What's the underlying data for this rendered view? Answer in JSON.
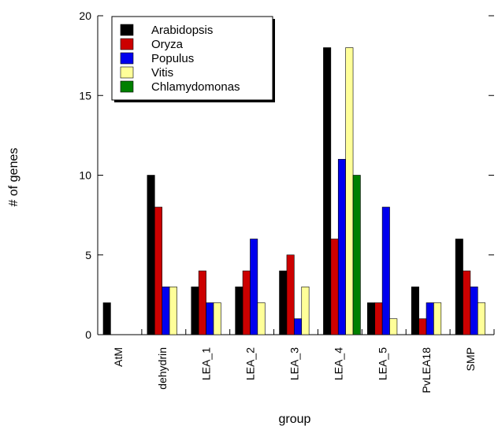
{
  "chart_data": {
    "type": "bar",
    "title": "",
    "xlabel": "group",
    "ylabel": "# of genes",
    "ylim": [
      0,
      20
    ],
    "yticks": [
      0,
      5,
      10,
      15,
      20
    ],
    "grid": false,
    "legend_position": "top-left",
    "categories": [
      "AtM",
      "dehydrin",
      "LEA_1",
      "LEA_2",
      "LEA_3",
      "LEA_4",
      "LEA_5",
      "PvLEA18",
      "SMP"
    ],
    "series": [
      {
        "name": "Arabidopsis",
        "color": "#000000",
        "values": [
          2,
          10,
          3,
          3,
          4,
          18,
          2,
          3,
          6
        ]
      },
      {
        "name": "Oryza",
        "color": "#cc0000",
        "values": [
          0,
          8,
          4,
          4,
          5,
          6,
          2,
          1,
          4
        ]
      },
      {
        "name": "Populus",
        "color": "#0000ee",
        "values": [
          0,
          3,
          2,
          6,
          1,
          11,
          8,
          2,
          3
        ]
      },
      {
        "name": "Vitis",
        "color": "#ffff99",
        "values": [
          0,
          3,
          2,
          2,
          3,
          18,
          1,
          2,
          2
        ]
      },
      {
        "name": "Chlamydomonas",
        "color": "#008000",
        "values": [
          0,
          0,
          0,
          0,
          0,
          10,
          0,
          0,
          0
        ]
      }
    ]
  }
}
